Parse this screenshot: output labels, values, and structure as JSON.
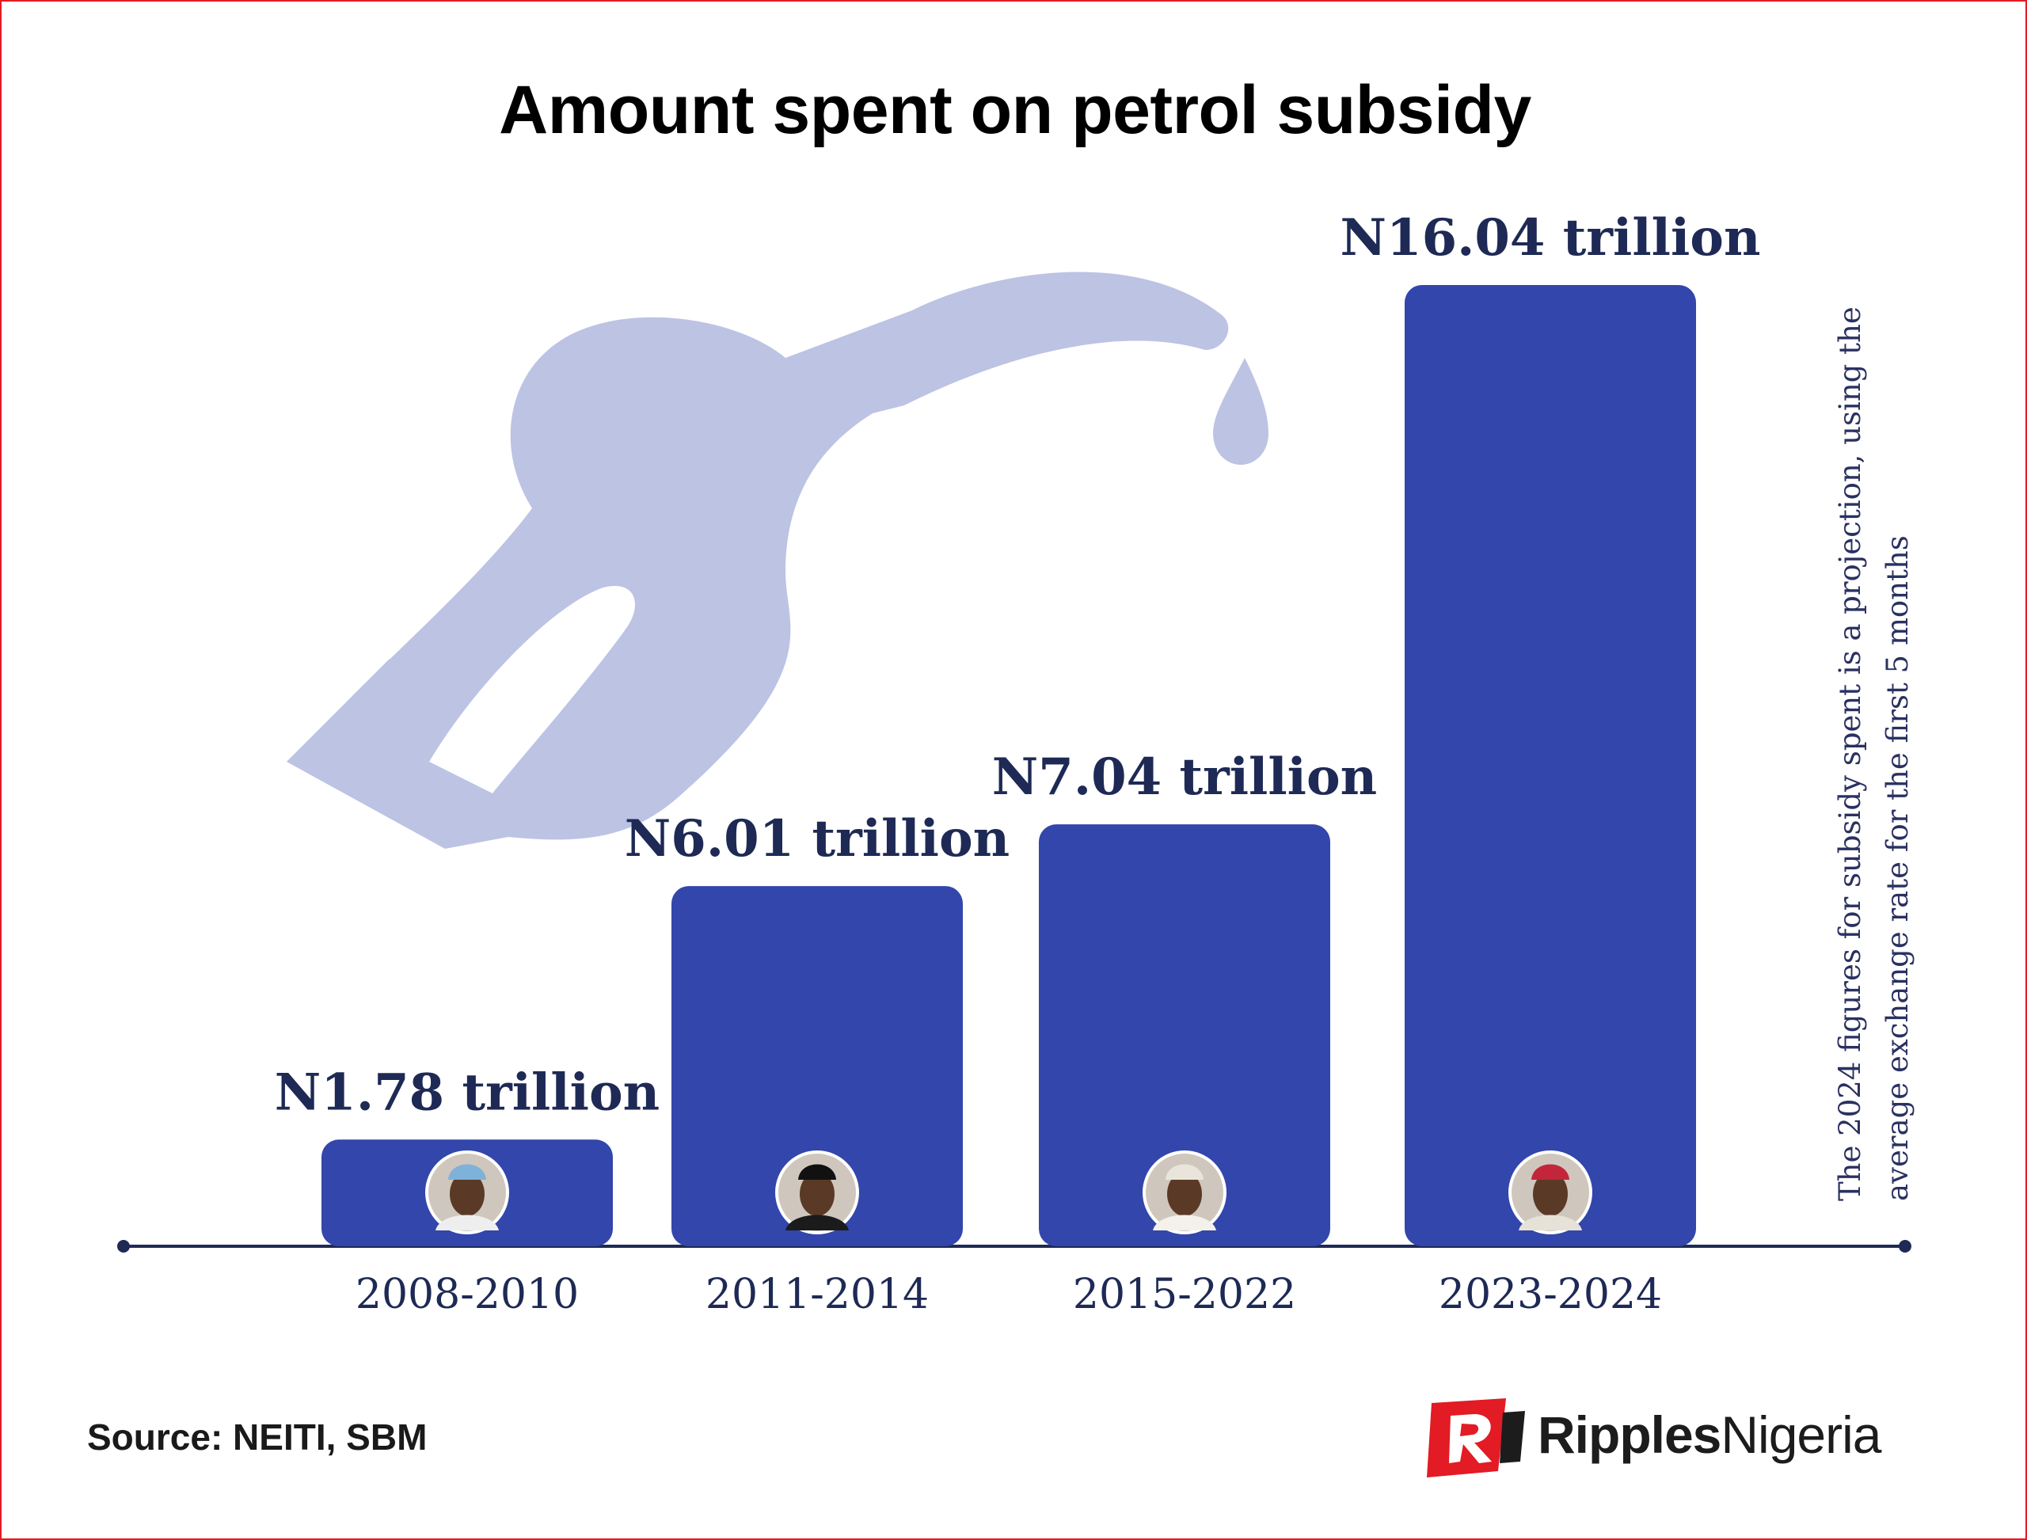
{
  "title": "Amount spent on petrol subsidy",
  "note": "The 2024 figures for subsidy spent is a projection, using the average exchange rate for the first 5 months",
  "source": "Source: NEITI, SBM",
  "brand": {
    "name_bold": "Ripples",
    "name_regular": "Nigeria"
  },
  "colors": {
    "bar": "#3246ab",
    "label": "#1e2a55",
    "axis": "#1e2a55",
    "nozzle": "#bcc3e3",
    "brand_red": "#e21b24"
  },
  "icons": [
    "fuel-nozzle-icon",
    "ripples-nigeria-logo"
  ],
  "portraits": [
    "portrait-yaradua",
    "portrait-jonathan",
    "portrait-buhari",
    "portrait-tinubu"
  ],
  "chart_data": {
    "type": "bar",
    "title": "Amount spent on petrol subsidy",
    "xlabel": "",
    "ylabel": "",
    "categories": [
      "2008-2010",
      "2011-2014",
      "2015-2022",
      "2023-2024"
    ],
    "values": [
      1.78,
      6.01,
      7.04,
      16.04
    ],
    "unit": "trillion naira",
    "value_labels": [
      "N1.78 trillion",
      "N6.01 trillion",
      "N7.04 trillion",
      "N16.04 trillion"
    ],
    "ylim": [
      0,
      16.04
    ],
    "grid": false,
    "legend": "none"
  }
}
